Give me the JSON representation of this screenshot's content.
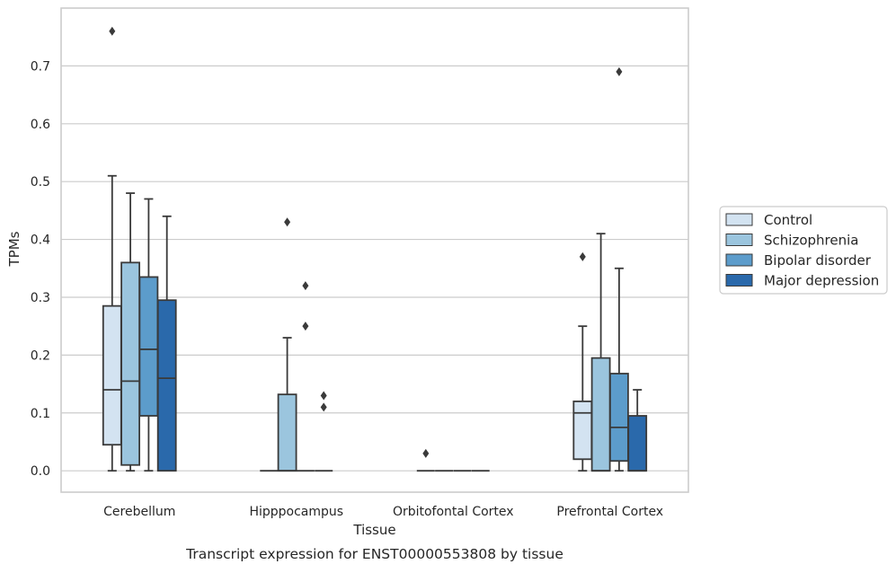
{
  "chart_data": {
    "type": "box",
    "title": "",
    "caption": "Transcript expression for ENST00000553808 by tissue",
    "xlabel": "Tissue",
    "ylabel": "TPMs",
    "ylim": [
      -0.037,
      0.8
    ],
    "yticks": [
      "0.0",
      "0.1",
      "0.2",
      "0.3",
      "0.4",
      "0.5",
      "0.6",
      "0.7"
    ],
    "grid": "horizontal",
    "legend_position": "right",
    "categories": [
      "Cerebellum",
      "Hipppocampus",
      "Orbitofontal Cortex",
      "Prefrontal Cortex"
    ],
    "colors": {
      "Control": "#d3e3f1",
      "Schizophrenia": "#9bc5de",
      "Bipolar disorder": "#5c9ccb",
      "Major depression": "#2a69ab",
      "line": "#3a3a3a",
      "grid": "#cccccc",
      "frame": "#cccccc"
    },
    "series": [
      {
        "name": "Control",
        "boxes": [
          {
            "category": "Cerebellum",
            "whisker_low": 0.0,
            "q1": 0.045,
            "median": 0.14,
            "q3": 0.285,
            "whisker_high": 0.51,
            "outliers": [
              0.76
            ]
          },
          {
            "category": "Hipppocampus",
            "whisker_low": 0.0,
            "q1": 0.0,
            "median": 0.0,
            "q3": 0.0,
            "whisker_high": 0.0,
            "outliers": []
          },
          {
            "category": "Orbitofontal Cortex",
            "whisker_low": 0.0,
            "q1": 0.0,
            "median": 0.0,
            "q3": 0.0,
            "whisker_high": 0.0,
            "outliers": []
          },
          {
            "category": "Prefrontal Cortex",
            "whisker_low": 0.0,
            "q1": 0.02,
            "median": 0.1,
            "q3": 0.12,
            "whisker_high": 0.25,
            "outliers": [
              0.37
            ]
          }
        ]
      },
      {
        "name": "Schizophrenia",
        "boxes": [
          {
            "category": "Cerebellum",
            "whisker_low": 0.0,
            "q1": 0.01,
            "median": 0.155,
            "q3": 0.36,
            "whisker_high": 0.48,
            "outliers": []
          },
          {
            "category": "Hipppocampus",
            "whisker_low": 0.0,
            "q1": 0.0,
            "median": 0.0,
            "q3": 0.132,
            "whisker_high": 0.23,
            "outliers": [
              0.43
            ]
          },
          {
            "category": "Orbitofontal Cortex",
            "whisker_low": 0.0,
            "q1": 0.0,
            "median": 0.0,
            "q3": 0.0,
            "whisker_high": 0.0,
            "outliers": []
          },
          {
            "category": "Prefrontal Cortex",
            "whisker_low": 0.0,
            "q1": 0.0,
            "median": 0.0,
            "q3": 0.195,
            "whisker_high": 0.41,
            "outliers": []
          }
        ]
      },
      {
        "name": "Bipolar disorder",
        "boxes": [
          {
            "category": "Cerebellum",
            "whisker_low": 0.0,
            "q1": 0.095,
            "median": 0.21,
            "q3": 0.335,
            "whisker_high": 0.47,
            "outliers": []
          },
          {
            "category": "Hipppocampus",
            "whisker_low": 0.0,
            "q1": 0.0,
            "median": 0.0,
            "q3": 0.0,
            "whisker_high": 0.0,
            "outliers": [
              0.32,
              0.25
            ]
          },
          {
            "category": "Orbitofontal Cortex",
            "whisker_low": 0.0,
            "q1": 0.0,
            "median": 0.0,
            "q3": 0.0,
            "whisker_high": 0.0,
            "outliers": []
          },
          {
            "category": "Prefrontal Cortex",
            "whisker_low": 0.0,
            "q1": 0.017,
            "median": 0.075,
            "q3": 0.168,
            "whisker_high": 0.35,
            "outliers": [
              0.69
            ]
          }
        ]
      },
      {
        "name": "Major depression",
        "boxes": [
          {
            "category": "Cerebellum",
            "whisker_low": 0.0,
            "q1": 0.0,
            "median": 0.16,
            "q3": 0.295,
            "whisker_high": 0.44,
            "outliers": []
          },
          {
            "category": "Hipppocampus",
            "whisker_low": 0.0,
            "q1": 0.0,
            "median": 0.0,
            "q3": 0.0,
            "whisker_high": 0.0,
            "outliers": [
              0.13,
              0.11
            ]
          },
          {
            "category": "Orbitofontal Cortex",
            "whisker_low": 0.0,
            "q1": 0.0,
            "median": 0.0,
            "q3": 0.0,
            "whisker_high": 0.0,
            "outliers": []
          },
          {
            "category": "Prefrontal Cortex",
            "whisker_low": 0.0,
            "q1": 0.0,
            "median": 0.0,
            "q3": 0.095,
            "whisker_high": 0.14,
            "outliers": []
          }
        ]
      }
    ],
    "extra_outliers": [
      {
        "category": "Orbitofontal Cortex",
        "value": 0.03
      }
    ]
  }
}
